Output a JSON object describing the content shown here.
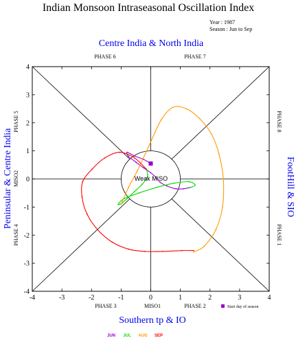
{
  "chart_data": {
    "type": "line",
    "title": "Indian Monsoon Intraseasonal Oscillation Index",
    "year_text": "Year : 1987",
    "season_text": "Season : Jun to Sep",
    "xlabel": "MISO1",
    "ylabel": "MISO2",
    "xlim": [
      -4,
      4
    ],
    "ylim": [
      -4,
      4
    ],
    "xticks": [
      "-4",
      "-3",
      "-2",
      "-1",
      "0",
      "1",
      "2",
      "3",
      "4"
    ],
    "yticks": [
      "-4",
      "-3",
      "-2",
      "-1",
      "0",
      "1",
      "2",
      "3",
      "4"
    ],
    "center_label": "Weak MISO",
    "regions": {
      "top": "Centre India & North India",
      "bottom": "Southern tp & IO",
      "left": "Peninsular & Centre India",
      "right": "FootHill & SIO"
    },
    "phases": {
      "p1": "PHASE 1",
      "p2": "PHASE 2",
      "p3": "PHASE 3",
      "p4": "PHASE 4",
      "p5": "PHASE 5",
      "p6": "PHASE 6",
      "p7": "PHASE 7",
      "p8": "PHASE 8"
    },
    "start_label": "Start day of season",
    "start_point": [
      0.0,
      0.55
    ],
    "colors": {
      "JUN": "#9900cc",
      "JUL": "#00dd00",
      "AUG": "#ff9900",
      "SEP": "#ff0000",
      "start": "#9900cc",
      "region_text": "#0000ee"
    },
    "series": [
      {
        "name": "JUN",
        "points": [
          [
            0.0,
            0.55
          ],
          [
            -0.25,
            0.7
          ],
          [
            -0.55,
            0.82
          ],
          [
            -0.8,
            0.95
          ],
          [
            -0.75,
            0.8
          ],
          [
            -0.5,
            0.6
          ],
          [
            -0.25,
            0.4
          ],
          [
            0.0,
            0.22
          ],
          [
            0.18,
            0.05
          ],
          [
            0.32,
            -0.12
          ],
          [
            0.55,
            -0.25
          ],
          [
            0.85,
            -0.35
          ],
          [
            1.1,
            -0.35
          ],
          [
            1.35,
            -0.3
          ]
        ]
      },
      {
        "name": "JUL",
        "points": [
          [
            1.35,
            -0.3
          ],
          [
            1.5,
            -0.22
          ],
          [
            1.3,
            -0.1
          ],
          [
            0.8,
            -0.15
          ],
          [
            0.2,
            -0.3
          ],
          [
            -0.4,
            -0.5
          ],
          [
            -0.9,
            -0.7
          ],
          [
            -1.1,
            -0.9
          ],
          [
            -1.0,
            -0.88
          ],
          [
            -0.8,
            -0.7
          ],
          [
            -0.55,
            -0.45
          ],
          [
            -0.3,
            -0.2
          ],
          [
            -0.15,
            0.0
          ],
          [
            -0.1,
            0.15
          ],
          [
            -0.15,
            0.35
          ]
        ]
      },
      {
        "name": "AUG",
        "points": [
          [
            -1.0,
            -0.9
          ],
          [
            -0.75,
            -0.3
          ],
          [
            -0.45,
            0.3
          ],
          [
            -0.05,
            1.2
          ],
          [
            0.35,
            2.1
          ],
          [
            0.75,
            2.55
          ],
          [
            1.2,
            2.5
          ],
          [
            1.65,
            2.15
          ],
          [
            2.05,
            1.6
          ],
          [
            2.3,
            0.9
          ],
          [
            2.45,
            0.0
          ],
          [
            2.42,
            -1.0
          ],
          [
            2.2,
            -1.8
          ],
          [
            1.8,
            -2.4
          ],
          [
            1.45,
            -2.6
          ]
        ]
      },
      {
        "name": "SEP",
        "points": [
          [
            -0.15,
            0.35
          ],
          [
            -0.55,
            0.75
          ],
          [
            -1.05,
            0.95
          ],
          [
            -1.55,
            0.75
          ],
          [
            -1.98,
            0.35
          ],
          [
            -2.3,
            -0.1
          ],
          [
            -2.32,
            -0.65
          ],
          [
            -2.15,
            -1.25
          ],
          [
            -1.8,
            -1.8
          ],
          [
            -1.3,
            -2.25
          ],
          [
            -0.75,
            -2.5
          ],
          [
            -0.2,
            -2.58
          ],
          [
            0.4,
            -2.58
          ],
          [
            1.05,
            -2.55
          ],
          [
            1.45,
            -2.55
          ]
        ]
      }
    ],
    "legend": [
      {
        "label": "JUN",
        "color": "#9900cc"
      },
      {
        "label": "JUL",
        "color": "#00dd00"
      },
      {
        "label": "AUG",
        "color": "#ff9900"
      },
      {
        "label": "SEP",
        "color": "#ff0000"
      }
    ]
  }
}
